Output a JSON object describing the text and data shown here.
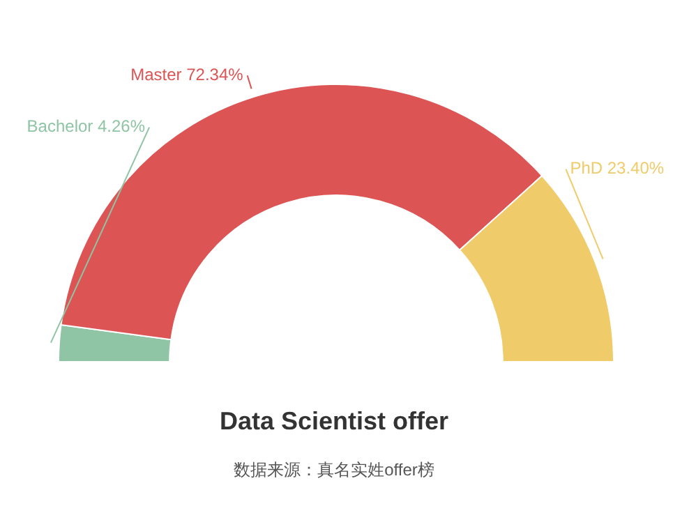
{
  "chart_data": {
    "type": "donut",
    "title": "Data Scientist offer",
    "annotations": [
      "数据来源：真名实姓offer榜"
    ],
    "categories": [
      "Bachelor",
      "Master",
      "PhD"
    ],
    "values": [
      4.26,
      72.34,
      23.4
    ],
    "value_labels": [
      "4.26%",
      "72.34%",
      "23.40%"
    ],
    "colors": [
      "#8fc4a4",
      "#dc5454",
      "#f0cb6a"
    ],
    "legend": false
  }
}
